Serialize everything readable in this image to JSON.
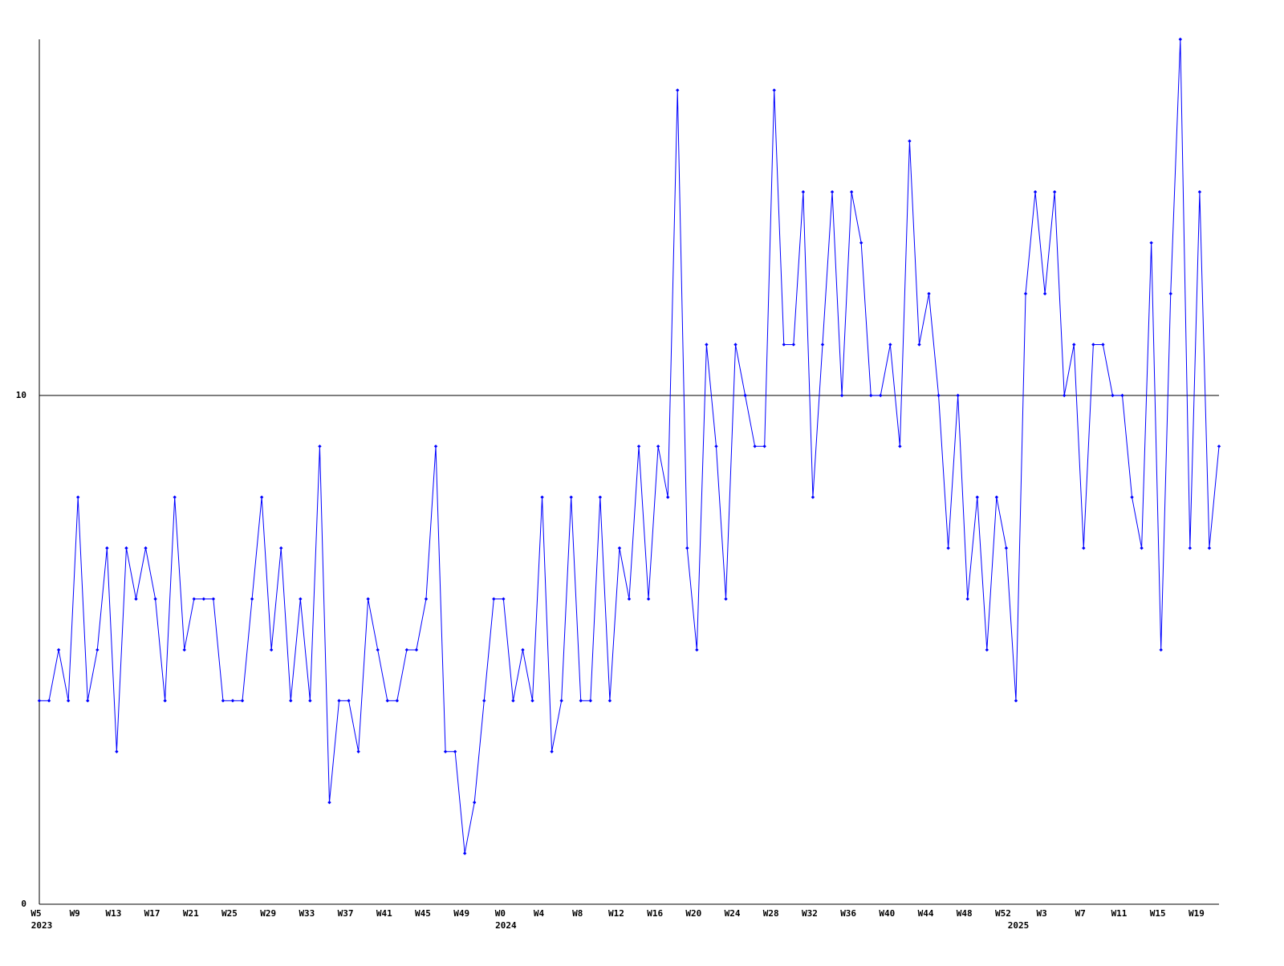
{
  "chart_data": {
    "type": "line",
    "categories": [
      "W5",
      null,
      null,
      null,
      "W9",
      null,
      null,
      null,
      "W13",
      null,
      null,
      null,
      "W17",
      null,
      null,
      null,
      "W21",
      null,
      null,
      null,
      "W25",
      null,
      null,
      null,
      "W29",
      null,
      null,
      null,
      "W33",
      null,
      null,
      null,
      "W37",
      null,
      null,
      null,
      "W41",
      null,
      null,
      null,
      "W45",
      null,
      null,
      null,
      "W49",
      null,
      null,
      null,
      "W0",
      null,
      null,
      null,
      "W4",
      null,
      null,
      null,
      "W8",
      null,
      null,
      null,
      "W12",
      null,
      null,
      null,
      "W16",
      null,
      null,
      null,
      "W20",
      null,
      null,
      null,
      "W24",
      null,
      null,
      null,
      "W28",
      null,
      null,
      null,
      "W32",
      null,
      null,
      null,
      "W36",
      null,
      null,
      null,
      "W40",
      null,
      null,
      null,
      "W44",
      null,
      null,
      null,
      "W48",
      null,
      null,
      null,
      "W52",
      null,
      null,
      null,
      "W3",
      null,
      null,
      null,
      "W7",
      null,
      null,
      null,
      "W11",
      null,
      null,
      null,
      "W15",
      null,
      null,
      null,
      "W19",
      null,
      null
    ],
    "category_years": [
      "2023",
      null,
      null,
      null,
      null,
      null,
      null,
      null,
      null,
      null,
      null,
      null,
      null,
      null,
      null,
      null,
      null,
      null,
      null,
      null,
      null,
      null,
      null,
      null,
      null,
      null,
      null,
      null,
      null,
      null,
      null,
      null,
      null,
      null,
      null,
      null,
      null,
      null,
      null,
      null,
      null,
      null,
      null,
      null,
      null,
      null,
      null,
      null,
      "2024",
      null,
      null,
      null,
      null,
      null,
      null,
      null,
      null,
      null,
      null,
      null,
      null,
      null,
      null,
      null,
      null,
      null,
      null,
      null,
      null,
      null,
      null,
      null,
      null,
      null,
      null,
      null,
      null,
      null,
      null,
      null,
      null,
      null,
      null,
      null,
      null,
      null,
      null,
      null,
      null,
      null,
      null,
      null,
      null,
      null,
      null,
      null,
      null,
      null,
      null,
      null,
      null,
      "2025",
      null,
      null,
      null,
      null,
      null,
      null,
      null,
      null,
      null,
      null,
      null,
      null,
      null,
      null,
      null,
      null,
      null,
      null,
      null,
      null,
      null
    ],
    "series": [
      {
        "color": "#0000ff",
        "values": [
          4,
          4,
          5,
          4,
          8,
          4,
          5,
          7,
          3,
          7,
          6,
          7,
          6,
          4,
          8,
          5,
          6,
          6,
          6,
          4,
          4,
          4,
          6,
          8,
          5,
          7,
          4,
          6,
          4,
          9,
          2,
          4,
          4,
          3,
          6,
          5,
          4,
          4,
          5,
          5,
          6,
          9,
          3,
          3,
          1,
          2,
          4,
          6,
          6,
          4,
          5,
          4,
          8,
          3,
          4,
          8,
          4,
          4,
          8,
          4,
          7,
          6,
          9,
          6,
          9,
          8,
          16,
          7,
          5,
          11,
          9,
          6,
          11,
          10,
          9,
          9,
          16,
          11,
          11,
          14,
          8,
          11,
          14,
          10,
          14,
          13,
          10,
          10,
          11,
          9,
          15,
          11,
          12,
          10,
          7,
          10,
          6,
          8,
          5,
          8,
          7,
          4,
          12,
          14,
          12,
          14,
          10,
          11,
          7,
          11,
          11,
          10,
          10,
          8,
          7,
          13,
          5,
          12,
          17,
          7,
          14,
          7,
          9
        ]
      }
    ],
    "ylim": [
      0,
      17
    ],
    "yticks": [
      0,
      10
    ],
    "grid": true
  }
}
